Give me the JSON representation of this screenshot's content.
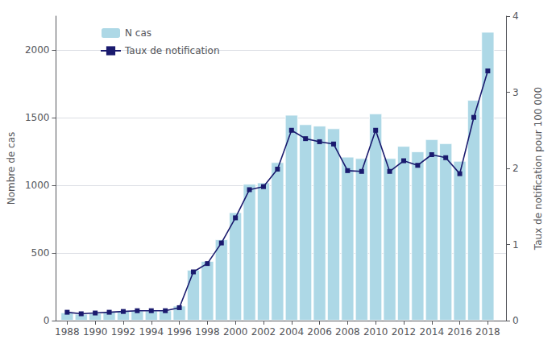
{
  "chart_data": {
    "type": "bar",
    "x": [
      1988,
      1989,
      1990,
      1991,
      1992,
      1993,
      1994,
      1995,
      1996,
      1997,
      1998,
      1999,
      2000,
      2001,
      2002,
      2003,
      2004,
      2005,
      2006,
      2007,
      2008,
      2009,
      2010,
      2011,
      2012,
      2013,
      2014,
      2015,
      2016,
      2017,
      2018
    ],
    "series": [
      {
        "name": "N cas",
        "type": "bar",
        "color": "#ADD8E6",
        "values": [
          60,
          50,
          55,
          65,
          70,
          75,
          75,
          75,
          110,
          375,
          440,
          600,
          800,
          1010,
          1020,
          1170,
          1520,
          1450,
          1440,
          1420,
          1210,
          1200,
          1530,
          1200,
          1290,
          1250,
          1340,
          1310,
          1180,
          1630,
          2133
        ]
      },
      {
        "name": "Taux de notification",
        "type": "line",
        "color": "#1a1a6e",
        "marker": "square",
        "axis": "y2",
        "values": [
          0.11,
          0.09,
          0.1,
          0.11,
          0.12,
          0.13,
          0.13,
          0.13,
          0.17,
          0.64,
          0.75,
          1.02,
          1.35,
          1.72,
          1.76,
          1.99,
          2.5,
          2.39,
          2.35,
          2.32,
          1.97,
          1.96,
          2.5,
          1.96,
          2.1,
          2.04,
          2.18,
          2.14,
          1.93,
          2.67,
          3.28
        ]
      }
    ],
    "xlim": [
      1987.2,
      2019.3
    ],
    "xticks": [
      1988,
      1990,
      1992,
      1994,
      1996,
      1998,
      2000,
      2002,
      2004,
      2006,
      2008,
      2010,
      2012,
      2014,
      2016,
      2018
    ],
    "ylabel": "Nombre de cas",
    "ylim": [
      0,
      2250
    ],
    "yticks": [
      0,
      500,
      1000,
      1500,
      2000
    ],
    "y2label": "Taux de notification pour 100 000",
    "y2lim": [
      0,
      4.0
    ],
    "y2ticks": [
      0,
      1,
      2,
      3,
      4
    ],
    "grid": true,
    "legend": "upper left"
  }
}
